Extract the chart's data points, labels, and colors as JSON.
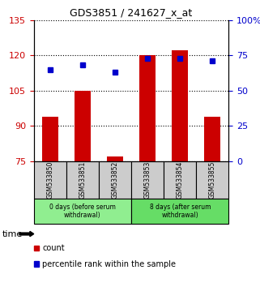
{
  "title": "GDS3851 / 241627_x_at",
  "samples": [
    "GSM533850",
    "GSM533851",
    "GSM533852",
    "GSM533853",
    "GSM533854",
    "GSM533855"
  ],
  "bar_values": [
    94,
    105,
    77,
    120,
    122,
    94
  ],
  "percentile_values": [
    65,
    68,
    63,
    73,
    73,
    71
  ],
  "bar_color": "#cc0000",
  "percentile_color": "#0000cc",
  "ylim_left": [
    75,
    135
  ],
  "ylim_right": [
    0,
    100
  ],
  "yticks_left": [
    75,
    90,
    105,
    120,
    135
  ],
  "ytick_labels_left": [
    "75",
    "90",
    "105",
    "120",
    "135"
  ],
  "yticks_right": [
    0,
    25,
    50,
    75,
    100
  ],
  "ytick_labels_right": [
    "0",
    "25",
    "50",
    "75",
    "100%"
  ],
  "groups": [
    {
      "label": "0 days (before serum\nwithdrawal)",
      "samples": [
        0,
        1,
        2
      ],
      "color": "#90ee90"
    },
    {
      "label": "8 days (after serum\nwithdrawal)",
      "samples": [
        3,
        4,
        5
      ],
      "color": "#66dd66"
    }
  ],
  "xlabel_area_color": "#cccccc",
  "time_label": "time",
  "legend_items": [
    {
      "label": "count",
      "color": "#cc0000"
    },
    {
      "label": "percentile rank within the sample",
      "color": "#0000cc"
    }
  ]
}
